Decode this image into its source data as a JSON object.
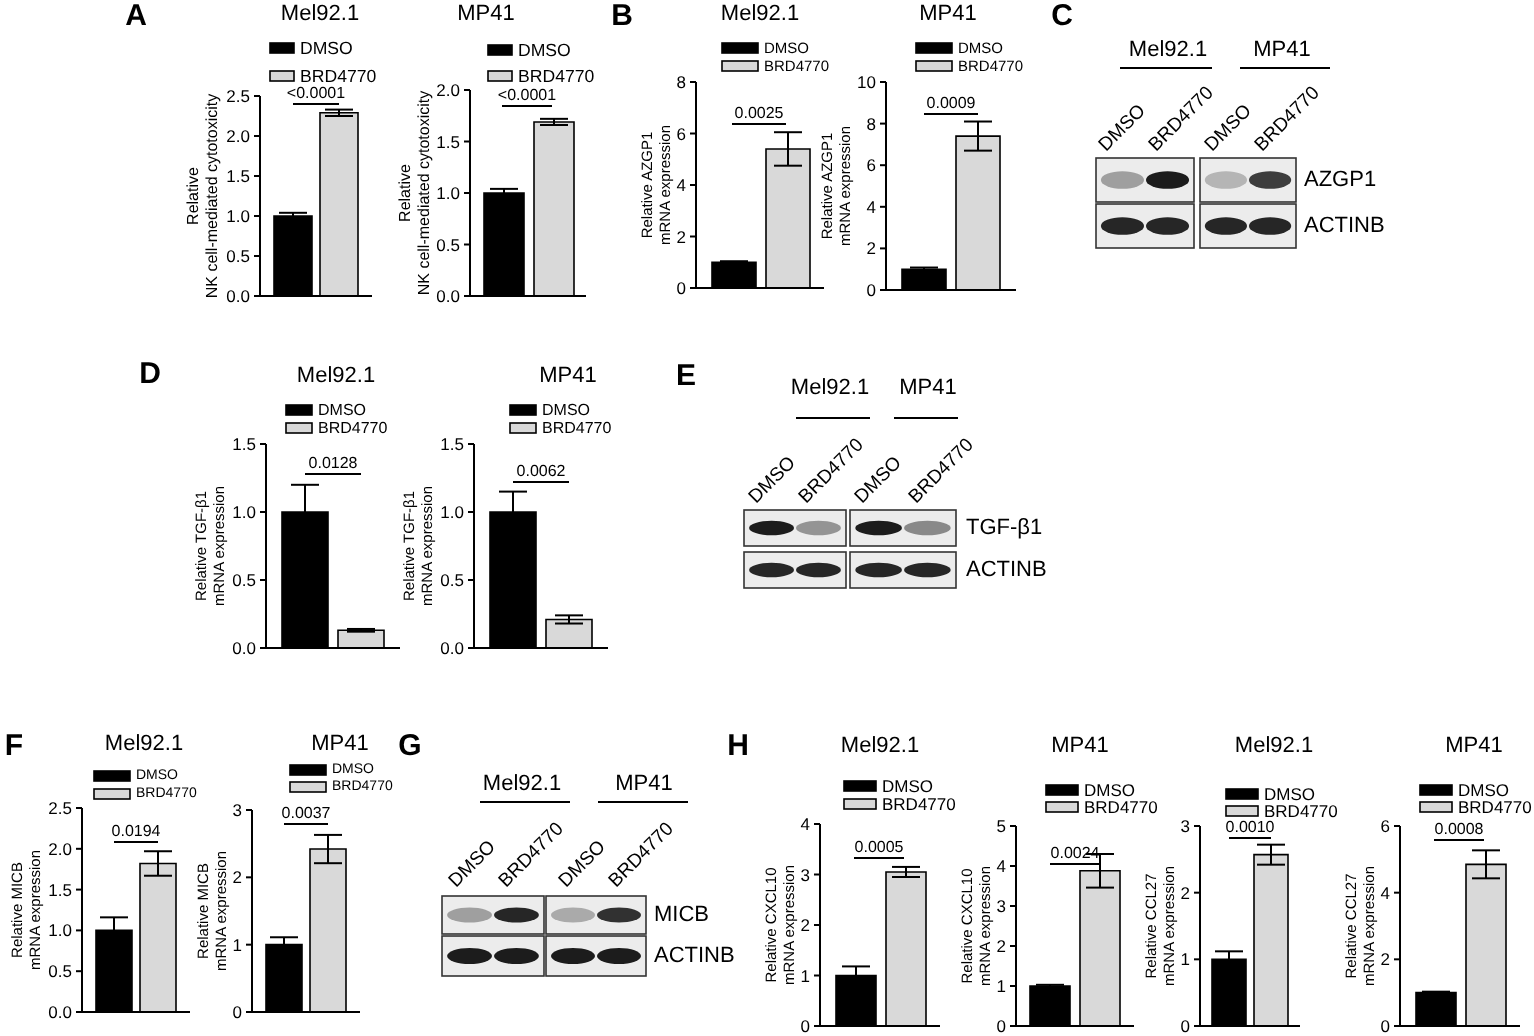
{
  "chart_data": [
    {
      "type": "bar",
      "title": "Mel92.1",
      "ylabel": "Relative\nNK cell-mediated cytotoxicity",
      "categories": [
        null
      ],
      "series": [
        {
          "name": "DMSO",
          "color": "#000000",
          "values": [
            1.0
          ],
          "errors": [
            0.04
          ]
        },
        {
          "name": "BRD4770",
          "color": "#d9d9d9",
          "values": [
            2.29
          ],
          "errors": [
            0.04
          ]
        }
      ],
      "ylim": [
        0,
        2.5
      ],
      "yticks": [
        {
          "value": 0,
          "label": "0.0"
        },
        0.5,
        {
          "value": 1,
          "label": "1.0"
        },
        1.5,
        {
          "value": 2,
          "label": "2.0"
        },
        2.5
      ],
      "legend": "top",
      "annotations": [
        "A",
        "<0.0001"
      ]
    },
    {
      "type": "bar",
      "title": "MP41",
      "ylabel": "Relative\nNK cell-mediated cytotoxicity",
      "categories": [
        null
      ],
      "series": [
        {
          "name": "DMSO",
          "color": "#000000",
          "values": [
            1.0
          ],
          "errors": [
            0.04
          ]
        },
        {
          "name": "BRD4770",
          "color": "#d9d9d9",
          "values": [
            1.69
          ],
          "errors": [
            0.03
          ]
        }
      ],
      "ylim": [
        0,
        2
      ],
      "yticks": [
        {
          "value": 0,
          "label": "0.0"
        },
        0.5,
        {
          "value": 1,
          "label": "1.0"
        },
        1.5,
        {
          "value": 2,
          "label": "2.0"
        }
      ],
      "legend": "top",
      "annotations": [
        "<0.0001"
      ]
    },
    {
      "type": "bar",
      "title": "Mel92.1",
      "ylabel": "Relative AZGP1\nmRNA expression",
      "categories": [
        null
      ],
      "series": [
        {
          "name": "DMSO",
          "color": "#000000",
          "values": [
            1.0
          ],
          "errors": [
            0.04
          ]
        },
        {
          "name": "BRD4770",
          "color": "#d9d9d9",
          "values": [
            5.4
          ],
          "errors": [
            0.65
          ]
        }
      ],
      "ylim": [
        0,
        8
      ],
      "yticks": [
        0,
        2,
        4,
        6,
        8
      ],
      "legend": "top",
      "annotations": [
        "B",
        "0.0025"
      ]
    },
    {
      "type": "bar",
      "title": "MP41",
      "ylabel": "Relative AZGP1\nmRNA expression",
      "categories": [
        null
      ],
      "series": [
        {
          "name": "DMSO",
          "color": "#000000",
          "values": [
            1.0
          ],
          "errors": [
            0.08
          ]
        },
        {
          "name": "BRD4770",
          "color": "#d9d9d9",
          "values": [
            7.4
          ],
          "errors": [
            0.7
          ]
        }
      ],
      "ylim": [
        0,
        10
      ],
      "yticks": [
        0,
        2,
        4,
        6,
        8,
        10
      ],
      "legend": "top",
      "annotations": [
        "0.0009"
      ]
    },
    {
      "type": "other",
      "annotations": [
        "C",
        "Mel92.1",
        "MP41",
        "DMSO",
        "BRD4770",
        "DMSO",
        "BRD4770",
        "AZGP1",
        "ACTINB"
      ]
    },
    {
      "type": "bar",
      "title": "Mel92.1",
      "ylabel": "Relative TGF-β1\nmRNA expression",
      "categories": [
        null
      ],
      "series": [
        {
          "name": "DMSO",
          "color": "#000000",
          "values": [
            1.0
          ],
          "errors": [
            0.2
          ]
        },
        {
          "name": "BRD4770",
          "color": "#d9d9d9",
          "values": [
            0.13
          ],
          "errors": [
            0.01
          ]
        }
      ],
      "ylim": [
        0,
        1.5
      ],
      "yticks": [
        {
          "value": 0,
          "label": "0.0"
        },
        0.5,
        {
          "value": 1,
          "label": "1.0"
        },
        1.5
      ],
      "legend": "top",
      "annotations": [
        "D",
        "0.0128"
      ]
    },
    {
      "type": "bar",
      "title": "MP41",
      "ylabel": "Relative TGF-β1\nmRNA expression",
      "categories": [
        null
      ],
      "series": [
        {
          "name": "DMSO",
          "color": "#000000",
          "values": [
            1.0
          ],
          "errors": [
            0.15
          ]
        },
        {
          "name": "BRD4770",
          "color": "#d9d9d9",
          "values": [
            0.21
          ],
          "errors": [
            0.03
          ]
        }
      ],
      "ylim": [
        0,
        1.5
      ],
      "yticks": [
        {
          "value": 0,
          "label": "0.0"
        },
        0.5,
        {
          "value": 1,
          "label": "1.0"
        },
        1.5
      ],
      "legend": "top",
      "annotations": [
        "0.0062"
      ]
    },
    {
      "type": "other",
      "annotations": [
        "E",
        "Mel92.1",
        "MP41",
        "DMSO",
        "BRD4770",
        "DMSO",
        "BRD4770",
        "TGF-β1",
        "ACTINB"
      ]
    },
    {
      "type": "bar",
      "title": "Mel92.1",
      "ylabel": "Relative MICB\nmRNA expression",
      "categories": [
        null
      ],
      "series": [
        {
          "name": "DMSO",
          "color": "#000000",
          "values": [
            1.0
          ],
          "errors": [
            0.16
          ]
        },
        {
          "name": "BRD4770",
          "color": "#d9d9d9",
          "values": [
            1.82
          ],
          "errors": [
            0.15
          ]
        }
      ],
      "ylim": [
        0,
        2.5
      ],
      "yticks": [
        {
          "value": 0,
          "label": "0.0"
        },
        0.5,
        {
          "value": 1,
          "label": "1.0"
        },
        1.5,
        {
          "value": 2,
          "label": "2.0"
        },
        2.5
      ],
      "legend": "top",
      "annotations": [
        "F",
        "0.0194"
      ]
    },
    {
      "type": "bar",
      "title": "MP41",
      "ylabel": "Relative MICB\nmRNA expression",
      "categories": [
        null
      ],
      "series": [
        {
          "name": "DMSO",
          "color": "#000000",
          "values": [
            1.0
          ],
          "errors": [
            0.11
          ]
        },
        {
          "name": "BRD4770",
          "color": "#d9d9d9",
          "values": [
            2.42
          ],
          "errors": [
            0.21
          ]
        }
      ],
      "ylim": [
        0,
        3
      ],
      "yticks": [
        0,
        1,
        2,
        3
      ],
      "legend": "top",
      "annotations": [
        "0.0037"
      ]
    },
    {
      "type": "other",
      "annotations": [
        "G",
        "Mel92.1",
        "MP41",
        "DMSO",
        "BRD4770",
        "DMSO",
        "BRD4770",
        "MICB",
        "ACTINB"
      ]
    },
    {
      "type": "bar",
      "title": "Mel92.1",
      "ylabel": "Relative CXCL10\nmRNA expression",
      "categories": [
        null
      ],
      "series": [
        {
          "name": "DMSO",
          "color": "#000000",
          "values": [
            1.0
          ],
          "errors": [
            0.18
          ]
        },
        {
          "name": "BRD4770",
          "color": "#d9d9d9",
          "values": [
            3.05
          ],
          "errors": [
            0.1
          ]
        }
      ],
      "ylim": [
        0,
        4
      ],
      "yticks": [
        0,
        1,
        2,
        3,
        4
      ],
      "legend": "top",
      "annotations": [
        "H",
        "0.0005"
      ]
    },
    {
      "type": "bar",
      "title": "MP41",
      "ylabel": "Relative CXCL10\nmRNA expression",
      "categories": [
        null
      ],
      "series": [
        {
          "name": "DMSO",
          "color": "#000000",
          "values": [
            1.0
          ],
          "errors": [
            0.03
          ]
        },
        {
          "name": "BRD4770",
          "color": "#d9d9d9",
          "values": [
            3.88
          ],
          "errors": [
            0.42
          ]
        }
      ],
      "ylim": [
        0,
        5
      ],
      "yticks": [
        0,
        1,
        2,
        3,
        4,
        5
      ],
      "legend": "top",
      "annotations": [
        "0.0024"
      ]
    },
    {
      "type": "bar",
      "title": "Mel92.1",
      "ylabel": "Relative CCL27\nmRNA expression",
      "categories": [
        null
      ],
      "series": [
        {
          "name": "DMSO",
          "color": "#000000",
          "values": [
            1.0
          ],
          "errors": [
            0.12
          ]
        },
        {
          "name": "BRD4770",
          "color": "#d9d9d9",
          "values": [
            2.57
          ],
          "errors": [
            0.15
          ]
        }
      ],
      "ylim": [
        0,
        3
      ],
      "yticks": [
        0,
        1,
        2,
        3
      ],
      "legend": "top",
      "annotations": [
        "0.0010"
      ]
    },
    {
      "type": "bar",
      "title": "MP41",
      "ylabel": "Relative CCL27\nmRNA expression",
      "categories": [
        null
      ],
      "series": [
        {
          "name": "DMSO",
          "color": "#000000",
          "values": [
            1.0
          ],
          "errors": [
            0.03
          ]
        },
        {
          "name": "BRD4770",
          "color": "#d9d9d9",
          "values": [
            4.85
          ],
          "errors": [
            0.42
          ]
        }
      ],
      "ylim": [
        0,
        6
      ],
      "yticks": [
        0,
        2,
        4,
        6
      ],
      "legend": "top",
      "annotations": [
        "0.0008"
      ]
    }
  ]
}
